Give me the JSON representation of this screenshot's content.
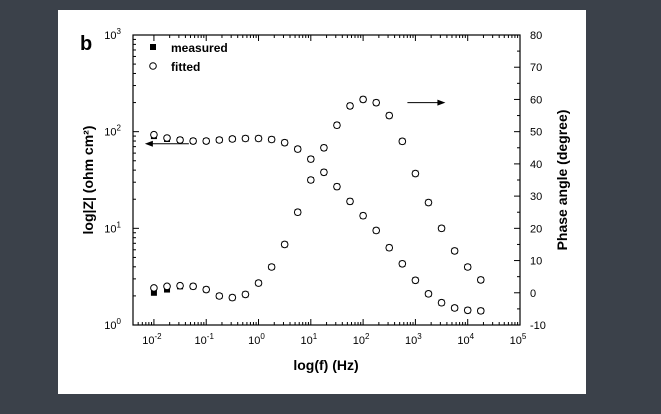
{
  "chart_data": {
    "type": "scatter",
    "panel_label": "b",
    "xlabel": "log(f)  (Hz)",
    "ylabel_left": "log|Z|  (ohm cm²)",
    "ylabel_right": "Phase angle (degree)",
    "x_scale": "log",
    "y_left_scale": "log",
    "xlim": [
      0.00398,
      100000
    ],
    "ylim_left": [
      1,
      1000
    ],
    "ylim_right": [
      -10,
      80
    ],
    "x_ticks": [
      "10⁻²",
      "10⁻¹",
      "10⁰",
      "10¹",
      "10²",
      "10³",
      "10⁴",
      "10⁵"
    ],
    "y_left_ticks": [
      "10⁰",
      "10¹",
      "10²",
      "10³"
    ],
    "y_right_ticks": [
      "-10",
      "0",
      "10",
      "20",
      "30",
      "40",
      "50",
      "60",
      "70",
      "80"
    ],
    "grid": false,
    "legend": {
      "placement": "top-left",
      "entries": [
        {
          "label": "measured",
          "marker": "filled-square"
        },
        {
          "label": "fitted",
          "marker": "open-circle"
        }
      ]
    },
    "arrows": [
      {
        "points_to": "left-axis",
        "near_x": 0.03,
        "near_y": 75
      },
      {
        "points_to": "right-axis",
        "near_x": 1000,
        "near_y": 200
      }
    ],
    "series": [
      {
        "name": "measured",
        "axis": "left",
        "marker": "filled-square",
        "quantity": "|Z|",
        "x": [
          0.01,
          0.0178,
          0.0316,
          0.0562,
          0.1,
          0.178,
          0.316,
          0.562,
          1,
          1.78,
          3.16,
          5.62,
          10,
          17.8,
          31.6,
          56.2,
          100,
          178,
          316,
          562,
          1000,
          1778,
          3162,
          5623,
          10000,
          17783
        ],
        "y": [
          90,
          84,
          82,
          80,
          80,
          82,
          84,
          85,
          85,
          83,
          77,
          66,
          52,
          38,
          27,
          19,
          13.5,
          9.5,
          6.3,
          4.3,
          2.9,
          2.1,
          1.7,
          1.5,
          1.42,
          1.4
        ]
      },
      {
        "name": "fitted",
        "axis": "left",
        "marker": "open-circle",
        "quantity": "|Z|",
        "x": [
          0.01,
          0.0178,
          0.0316,
          0.0562,
          0.1,
          0.178,
          0.316,
          0.562,
          1,
          1.78,
          3.16,
          5.62,
          10,
          17.8,
          31.6,
          56.2,
          100,
          178,
          316,
          562,
          1000,
          1778,
          3162,
          5623,
          10000,
          17783
        ],
        "y": [
          93,
          86,
          82,
          80,
          80,
          82,
          84,
          85,
          85,
          83,
          77,
          66,
          52,
          38,
          27,
          19,
          13.5,
          9.5,
          6.3,
          4.3,
          2.9,
          2.1,
          1.7,
          1.5,
          1.42,
          1.4
        ]
      },
      {
        "name": "measured",
        "axis": "right",
        "marker": "filled-square",
        "quantity": "phase",
        "x": [
          0.01,
          0.0178,
          0.0316,
          0.0562,
          0.1,
          0.178,
          0.316,
          0.562,
          1,
          1.78,
          3.16,
          5.62,
          10,
          17.8,
          31.6,
          56.2,
          100,
          178,
          316,
          562,
          1000,
          1778,
          3162,
          5623,
          10000,
          17783
        ],
        "y": [
          0,
          1,
          2,
          2,
          1,
          -1,
          -1.5,
          -0.5,
          3,
          8,
          15,
          25,
          35,
          45,
          52,
          58,
          60,
          59,
          55,
          47,
          37,
          28,
          20,
          13,
          8,
          4
        ]
      },
      {
        "name": "fitted",
        "axis": "right",
        "marker": "open-circle",
        "quantity": "phase",
        "x": [
          0.01,
          0.0178,
          0.0316,
          0.0562,
          0.1,
          0.178,
          0.316,
          0.562,
          1,
          1.78,
          3.16,
          5.62,
          10,
          17.8,
          31.6,
          56.2,
          100,
          178,
          316,
          562,
          1000,
          1778,
          3162,
          5623,
          10000,
          17783
        ],
        "y": [
          1.5,
          2,
          2.2,
          2,
          1,
          -1,
          -1.5,
          -0.5,
          3,
          8,
          15,
          25,
          35,
          45,
          52,
          58,
          60,
          59,
          55,
          47,
          37,
          28,
          20,
          13,
          8,
          4
        ]
      }
    ]
  }
}
